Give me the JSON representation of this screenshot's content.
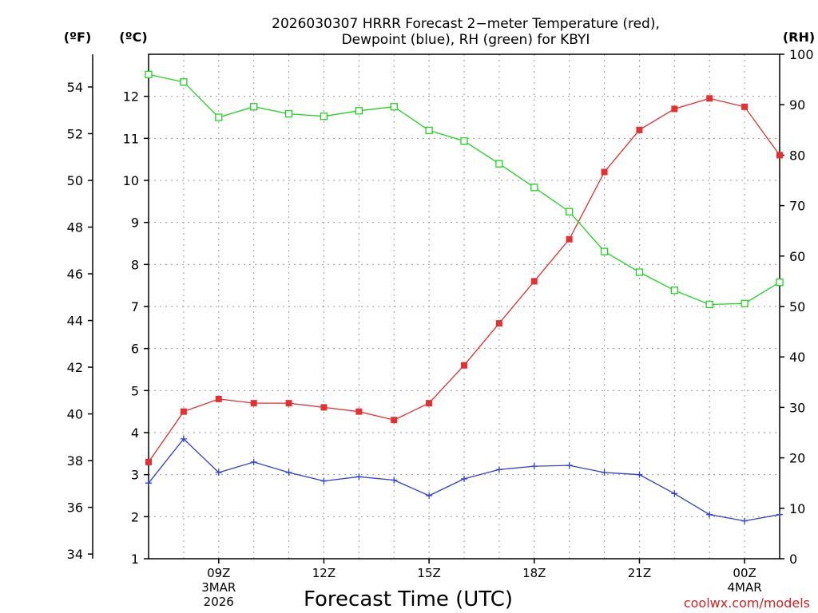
{
  "chart_data": {
    "type": "line",
    "title": "2026030307 HRRR Forecast 2−meter Temperature (red),",
    "subtitle": "Dewpoint (blue), RH (green) for KBYI",
    "xlabel": "Forecast Time (UTC)",
    "credit": "coolwx.com/models",
    "units": {
      "fahrenheit": "(ºF)",
      "celsius": "(ºC)",
      "rh": "(RH)"
    },
    "x_hours": [
      7,
      8,
      9,
      10,
      11,
      12,
      13,
      14,
      15,
      16,
      17,
      18,
      19,
      20,
      21,
      22,
      23,
      24,
      25
    ],
    "x_range": [
      7,
      25
    ],
    "x_ticks": [
      {
        "hour": 9,
        "lines": [
          "09Z",
          "3MAR",
          "2026"
        ]
      },
      {
        "hour": 12,
        "lines": [
          "12Z"
        ]
      },
      {
        "hour": 15,
        "lines": [
          "15Z"
        ]
      },
      {
        "hour": 18,
        "lines": [
          "18Z"
        ]
      },
      {
        "hour": 21,
        "lines": [
          "21Z"
        ]
      },
      {
        "hour": 24,
        "lines": [
          "00Z",
          "4MAR"
        ]
      }
    ],
    "left_f_axis": {
      "range": [
        33.8,
        55.4
      ],
      "ticks": [
        34,
        36,
        38,
        40,
        42,
        44,
        46,
        48,
        50,
        52,
        54
      ]
    },
    "left_c_axis": {
      "range": [
        1,
        13
      ],
      "ticks": [
        1,
        2,
        3,
        4,
        5,
        6,
        7,
        8,
        9,
        10,
        11,
        12
      ]
    },
    "right_rh_axis": {
      "range": [
        0,
        100
      ],
      "ticks": [
        0,
        10,
        20,
        30,
        40,
        50,
        60,
        70,
        80,
        90,
        100
      ]
    },
    "series": [
      {
        "name": "2-meter Temperature",
        "axis": "celsius",
        "color": "#e82e2e",
        "marker": "filled-square",
        "values": [
          3.3,
          4.5,
          4.8,
          4.7,
          4.7,
          4.6,
          4.5,
          4.3,
          4.7,
          5.6,
          6.6,
          7.6,
          8.6,
          10.2,
          11.2,
          11.7,
          11.95,
          11.75,
          10.6
        ]
      },
      {
        "name": "Dewpoint",
        "axis": "celsius",
        "color": "#2d3fe0",
        "marker": "plus",
        "values": [
          2.8,
          3.85,
          3.05,
          3.3,
          3.05,
          2.85,
          2.95,
          2.87,
          2.5,
          2.9,
          3.12,
          3.2,
          3.22,
          3.05,
          3.0,
          2.55,
          2.05,
          1.9,
          2.05
        ]
      },
      {
        "name": "RH",
        "axis": "rh",
        "color": "#1fd41f",
        "marker": "open-square",
        "values": [
          96,
          94.5,
          87.5,
          89.6,
          88.2,
          87.7,
          88.8,
          89.6,
          84.9,
          82.8,
          78.3,
          73.6,
          68.8,
          60.9,
          56.8,
          53.2,
          50.4,
          50.6,
          54.8
        ]
      }
    ]
  }
}
